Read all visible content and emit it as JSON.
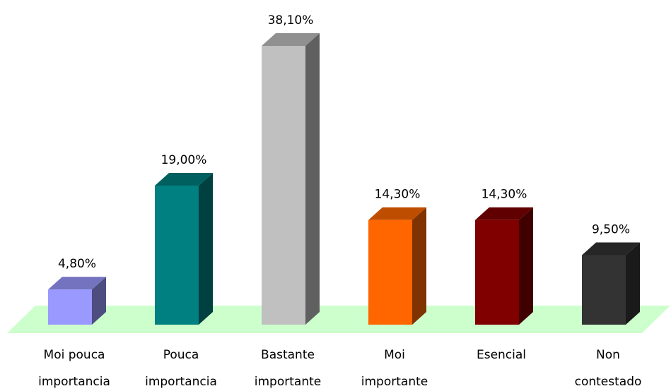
{
  "chart_data": {
    "type": "bar3d",
    "categories": [
      [
        "Moi pouca",
        "importancia"
      ],
      [
        "Pouca",
        "importancia"
      ],
      [
        "Bastante",
        "importante"
      ],
      [
        "Moi",
        "importante"
      ],
      [
        "Esencial"
      ],
      [
        "Non",
        "contestado"
      ]
    ],
    "values": [
      4.8,
      19.0,
      38.1,
      14.3,
      14.3,
      9.5
    ],
    "value_labels": [
      "4,80%",
      "19,00%",
      "38,10%",
      "14,30%",
      "14,30%",
      "9,50%"
    ],
    "colors": [
      "#9999ff",
      "#008080",
      "#c0c0c0",
      "#ff6600",
      "#800000",
      "#333333"
    ],
    "floor_color": "#ccffcc"
  }
}
